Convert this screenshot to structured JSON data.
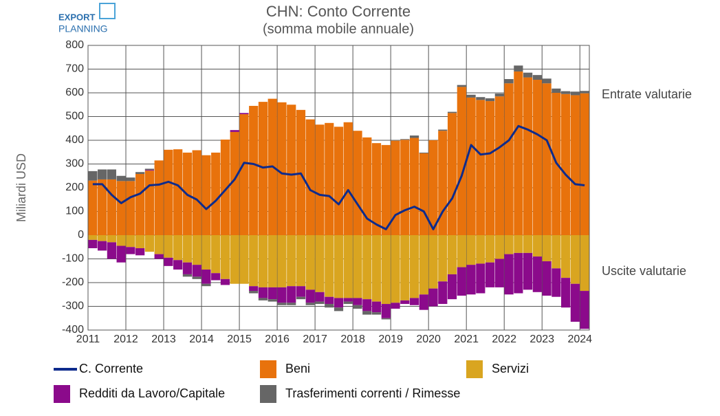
{
  "chart_data": {
    "type": "bar",
    "title": "CHN: Conto Corrente",
    "subtitle": "(somma mobile annuale)",
    "logo": [
      "EXPORT",
      "PLANNING"
    ],
    "ylabel": "Miliardi USD",
    "annotations": [
      "Entrate valutarie",
      "Uscite valutarie"
    ],
    "x": [
      2011.125,
      2011.375,
      2011.625,
      2011.875,
      2012.125,
      2012.375,
      2012.625,
      2012.875,
      2013.125,
      2013.375,
      2013.625,
      2013.875,
      2014.125,
      2014.375,
      2014.625,
      2014.875,
      2015.125,
      2015.375,
      2015.625,
      2015.875,
      2016.125,
      2016.375,
      2016.625,
      2016.875,
      2017.125,
      2017.375,
      2017.625,
      2017.875,
      2018.125,
      2018.375,
      2018.625,
      2018.875,
      2019.125,
      2019.375,
      2019.625,
      2019.875,
      2020.125,
      2020.375,
      2020.625,
      2020.875,
      2021.125,
      2021.375,
      2021.625,
      2021.875,
      2022.125,
      2022.375,
      2022.625,
      2022.875,
      2023.125,
      2023.375,
      2023.625,
      2023.875,
      2024.125
    ],
    "series": [
      {
        "name": "Beni",
        "color": "#e8720c",
        "values": [
          230,
          235,
          235,
          228,
          228,
          258,
          272,
          315,
          360,
          362,
          348,
          358,
          337,
          348,
          403,
          435,
          510,
          545,
          562,
          575,
          560,
          550,
          528,
          488,
          466,
          473,
          457,
          476,
          440,
          412,
          388,
          380,
          398,
          402,
          410,
          345,
          400,
          440,
          515,
          625,
          580,
          570,
          565,
          585,
          640,
          690,
          665,
          655,
          640,
          600,
          595,
          590,
          598
        ]
      },
      {
        "name": "Servizi",
        "color": "#d9a520",
        "values": [
          -20,
          -25,
          -30,
          -45,
          -50,
          -55,
          -70,
          -80,
          -95,
          -105,
          -115,
          -125,
          -145,
          -160,
          -185,
          -205,
          -205,
          -215,
          -220,
          -220,
          -220,
          -215,
          -215,
          -230,
          -240,
          -260,
          -265,
          -265,
          -265,
          -270,
          -280,
          -290,
          -285,
          -275,
          -265,
          -250,
          -225,
          -195,
          -165,
          -135,
          -125,
          -120,
          -115,
          -100,
          -80,
          -75,
          -75,
          -90,
          -110,
          -140,
          -180,
          -205,
          -235
        ]
      },
      {
        "name": "Redditi da Lavoro/Capitale",
        "color": "#8b0a8b",
        "values": [
          -35,
          -40,
          -70,
          -70,
          -30,
          -30,
          3,
          -20,
          -35,
          -40,
          -50,
          -50,
          -60,
          -30,
          -25,
          8,
          5,
          -20,
          -45,
          -50,
          -65,
          -70,
          -45,
          -55,
          -40,
          -30,
          -40,
          -15,
          -30,
          -50,
          -45,
          -60,
          -25,
          -15,
          -30,
          -65,
          -75,
          -95,
          -105,
          -120,
          -125,
          -125,
          -105,
          -120,
          -170,
          -170,
          -155,
          -150,
          -145,
          -120,
          -125,
          -160,
          -160
        ]
      },
      {
        "name": "Trasferimenti correnti / Rimesse",
        "color": "#666666",
        "values": [
          40,
          42,
          42,
          22,
          15,
          8,
          5,
          0,
          0,
          0,
          -10,
          -10,
          -10,
          0,
          0,
          0,
          0,
          -10,
          -10,
          -10,
          -10,
          -10,
          -10,
          -10,
          -10,
          -15,
          -15,
          -10,
          -15,
          -15,
          -10,
          -5,
          0,
          3,
          10,
          3,
          0,
          5,
          5,
          8,
          12,
          12,
          12,
          12,
          18,
          25,
          20,
          20,
          20,
          18,
          12,
          15,
          10
        ]
      },
      {
        "name": "C. Corrente",
        "color": "#0d2b8c",
        "line": true,
        "values": [
          215,
          215,
          170,
          135,
          160,
          175,
          210,
          213,
          225,
          210,
          170,
          150,
          110,
          145,
          190,
          235,
          305,
          300,
          285,
          290,
          260,
          255,
          260,
          190,
          170,
          165,
          130,
          190,
          130,
          70,
          45,
          25,
          85,
          105,
          120,
          100,
          25,
          100,
          155,
          250,
          380,
          340,
          345,
          370,
          400,
          460,
          445,
          425,
          400,
          305,
          255,
          215,
          210
        ]
      }
    ],
    "xlim": [
      2011,
      2024.25
    ],
    "xticks": [
      2011,
      2012,
      2013,
      2014,
      2015,
      2016,
      2017,
      2018,
      2019,
      2020,
      2021,
      2022,
      2023,
      2024
    ],
    "ylim": [
      -400,
      800
    ],
    "yticks": [
      -400,
      -300,
      -200,
      -100,
      0,
      100,
      200,
      300,
      400,
      500,
      600,
      700,
      800
    ],
    "grid": true
  }
}
